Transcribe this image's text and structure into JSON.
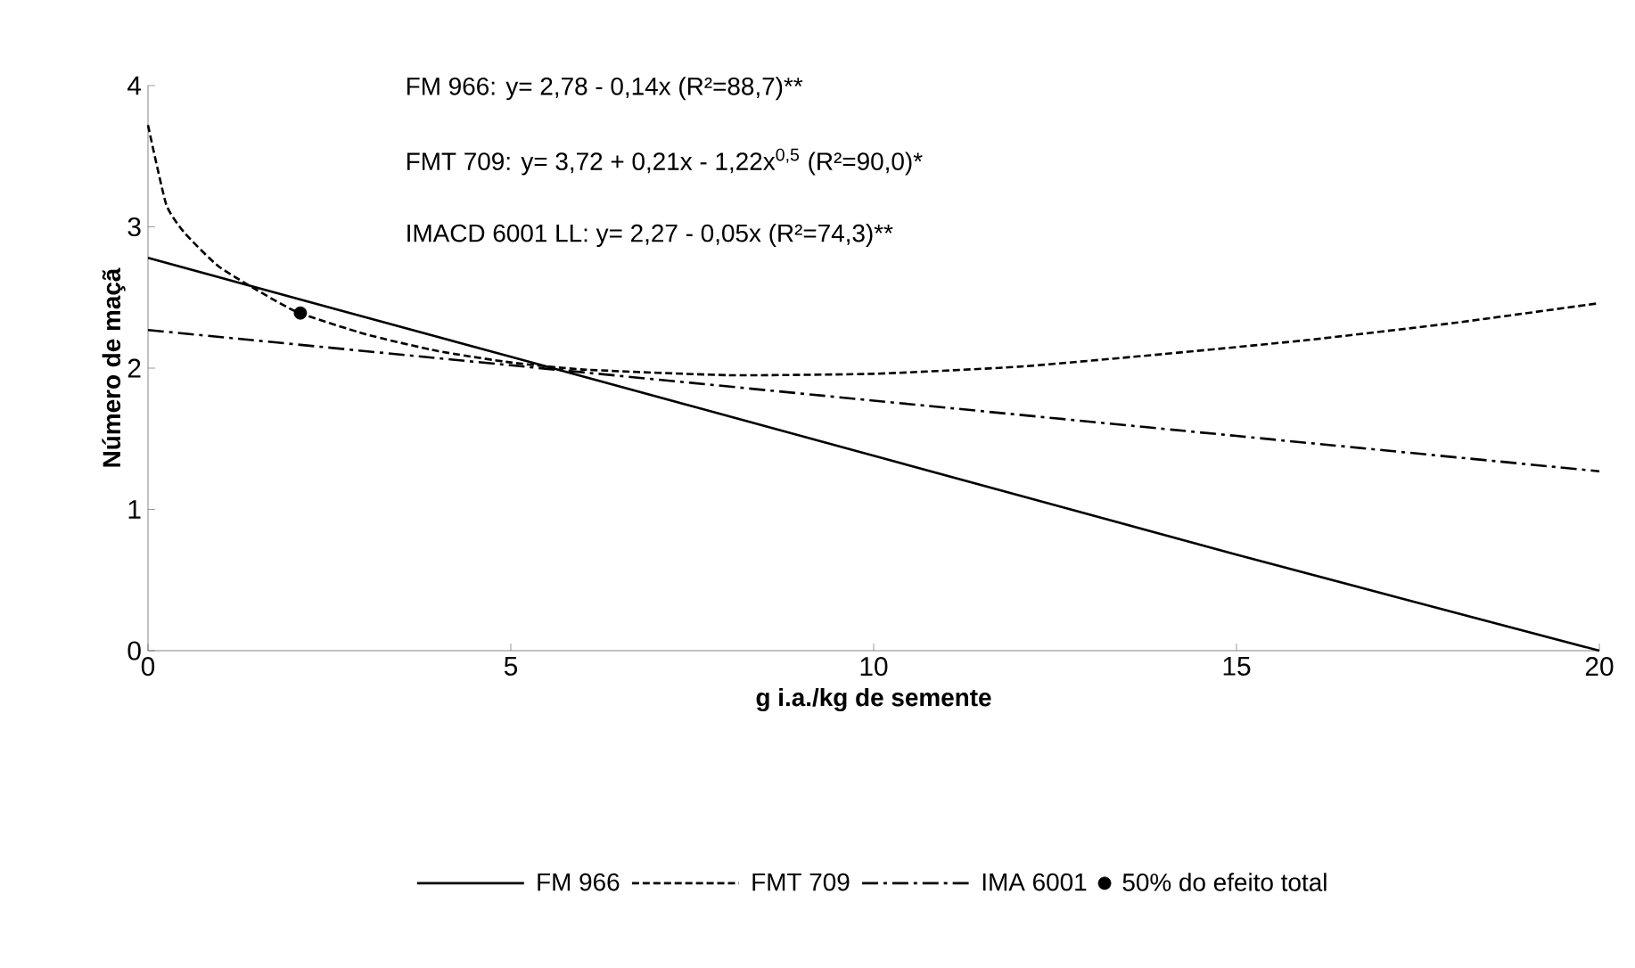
{
  "chart_data": {
    "type": "line",
    "xlabel": "g i.a./kg de semente",
    "ylabel": "Número de maçã",
    "xlim": [
      0,
      20
    ],
    "ylim": [
      0,
      4
    ],
    "xticks": [
      0,
      5,
      10,
      15,
      20
    ],
    "yticks": [
      0,
      1,
      2,
      3,
      4
    ],
    "grid": false,
    "legend": "bottom",
    "annotations": [
      "FM 966: y= 2,78 - 0,14x (R²=88,7)**",
      "FMT 709: y= 3,72 + 0,21x - 1,22x$^{0,5}$ (R²=90,0)*",
      "IMACD 6001 LL: y= 2,27 - 0,05x (R²=74,3)**"
    ],
    "series": [
      {
        "name": "FM 966",
        "color": "#000000",
        "type": "line",
        "line_style": "solid",
        "marker": "none",
        "x": [
          0,
          5,
          10,
          15,
          20
        ],
        "values": [
          2.78,
          2.08,
          1.38,
          0.68,
          0
        ]
      },
      {
        "name": "FMT 709",
        "color": "#000000",
        "type": "line",
        "line_style": "dashed",
        "marker": "none",
        "x": [
          0,
          0.25,
          0.5,
          1,
          2,
          3,
          4,
          5,
          6,
          8,
          10,
          12,
          14,
          16,
          18,
          20
        ],
        "values": [
          3.72,
          3.16,
          2.96,
          2.71,
          2.41,
          2.24,
          2.12,
          2.04,
          1.99,
          1.95,
          1.96,
          2.01,
          2.1,
          2.2,
          2.32,
          2.46
        ]
      },
      {
        "name": "IMA 6001",
        "color": "#000000",
        "type": "line",
        "line_style": "dashdot",
        "marker": "none",
        "x": [
          0,
          5,
          10,
          15,
          20
        ],
        "values": [
          2.27,
          2.02,
          1.77,
          1.52,
          1.27
        ]
      },
      {
        "name": "50% do efeito total",
        "color": "#000000",
        "type": "scatter",
        "marker": "circle",
        "x": [
          2.1
        ],
        "values": [
          2.39
        ]
      }
    ]
  }
}
